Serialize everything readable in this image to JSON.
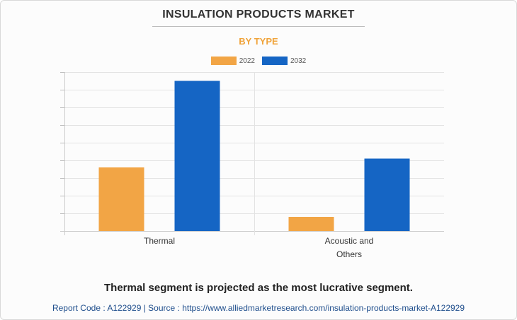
{
  "header": {
    "title": "INSULATION PRODUCTS MARKET",
    "subtitle": "BY TYPE"
  },
  "legend": [
    {
      "label": "2022",
      "color": "#f2a545"
    },
    {
      "label": "2032",
      "color": "#1565c4"
    }
  ],
  "chart_data": {
    "type": "bar",
    "title": "INSULATION PRODUCTS MARKET",
    "subtitle": "BY TYPE",
    "categories": [
      "Thermal",
      "Acoustic and Others"
    ],
    "category_lines": [
      [
        "Thermal"
      ],
      [
        "Acoustic and",
        "Others"
      ]
    ],
    "series": [
      {
        "name": "2022",
        "color": "#f2a545",
        "values": [
          3.6,
          0.8
        ]
      },
      {
        "name": "2032",
        "color": "#1565c4",
        "values": [
          8.5,
          4.1
        ]
      }
    ],
    "ylim": [
      0,
      9
    ],
    "ytick_count": 9,
    "y_axis_labels_shown": false,
    "grid": true,
    "legend_position": "top-center"
  },
  "footer": {
    "takeaway": "Thermal segment is projected as the most lucrative segment.",
    "report_code": "Report Code : A122929  |  Source : https://www.alliedmarketresearch.com/insulation-products-market-A122929"
  }
}
